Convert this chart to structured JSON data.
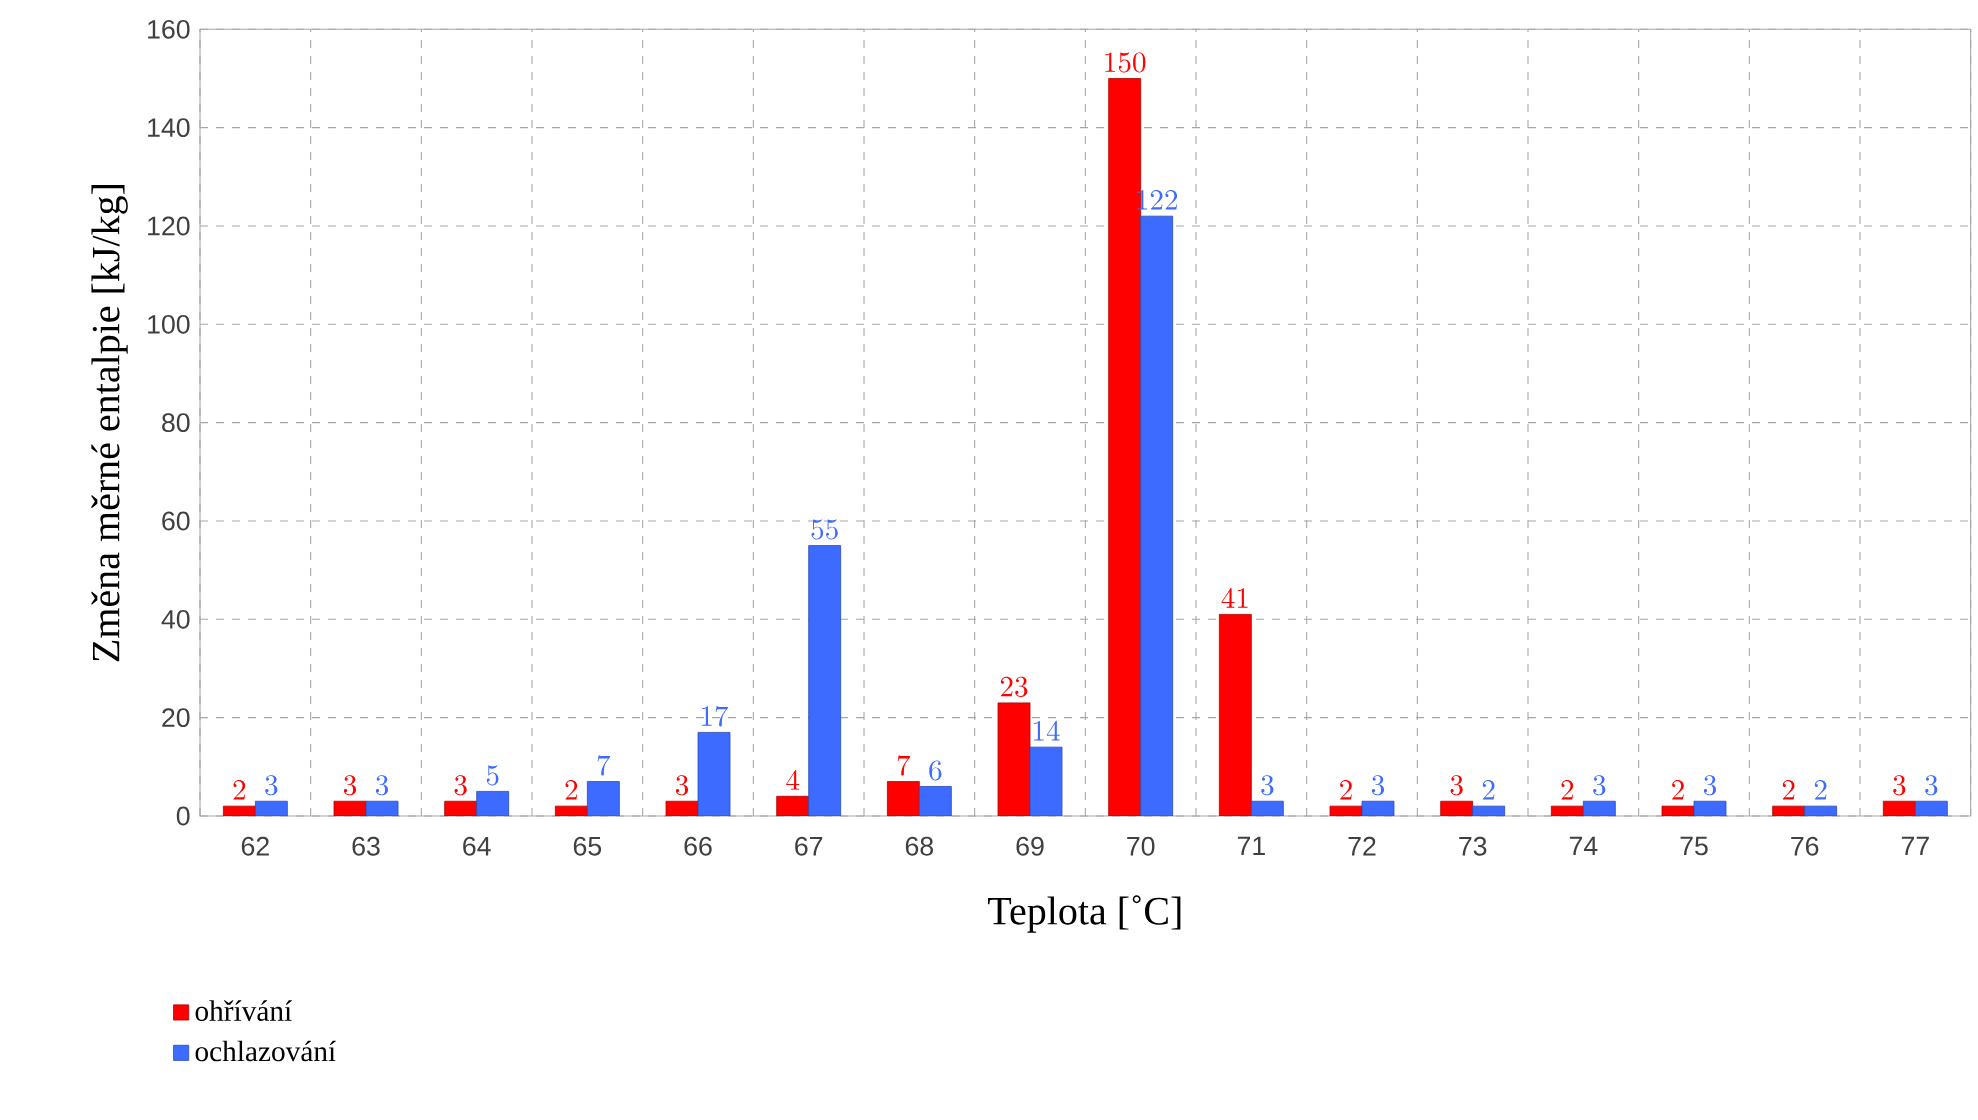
{
  "chart_data": {
    "type": "bar",
    "xlabel": "Teplota [˚C]",
    "ylabel": "Změna měrné entalpie [kJ/kg]",
    "categories": [
      "62",
      "63",
      "64",
      "65",
      "66",
      "67",
      "68",
      "69",
      "70",
      "71",
      "72",
      "73",
      "74",
      "75",
      "76",
      "77"
    ],
    "series": [
      {
        "name": "ohřívání",
        "color": "#ff0000",
        "values": [
          2,
          3,
          3,
          2,
          3,
          4,
          7,
          23,
          150,
          41,
          2,
          3,
          2,
          2,
          2,
          3
        ]
      },
      {
        "name": "ochlazování",
        "color": "#3d6bff",
        "values": [
          3,
          3,
          5,
          7,
          17,
          55,
          6,
          14,
          122,
          3,
          3,
          2,
          3,
          3,
          2,
          3
        ]
      }
    ],
    "ylim": [
      0,
      160
    ],
    "yticks": [
      0,
      20,
      40,
      60,
      80,
      100,
      120,
      140,
      160
    ],
    "grid": true,
    "legend": "bottom left",
    "data_labels": true
  }
}
